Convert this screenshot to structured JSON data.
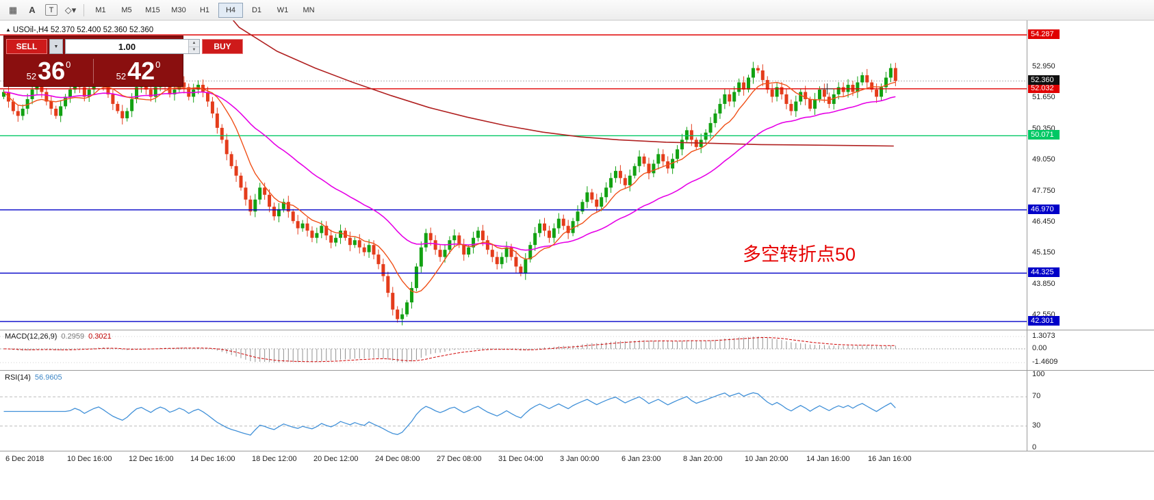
{
  "toolbar": {
    "tools": [
      {
        "name": "crosshair-grid-icon",
        "glyph": "▦"
      },
      {
        "name": "text-label-icon",
        "glyph": "A"
      },
      {
        "name": "text-box-icon",
        "glyph": "T"
      },
      {
        "name": "shapes-icon",
        "glyph": "◇▾"
      }
    ],
    "timeframes": [
      "M1",
      "M5",
      "M15",
      "M30",
      "H1",
      "H4",
      "D1",
      "W1",
      "MN"
    ],
    "active": "H4"
  },
  "header": {
    "marker": "▲",
    "text": "USOil-,H4 52.370 52.400 52.360 52.360"
  },
  "trade_panel": {
    "sell_label": "SELL",
    "buy_label": "BUY",
    "volume": "1.00",
    "sell_price": {
      "small": "52",
      "big": "36",
      "sup": "0"
    },
    "buy_price": {
      "small": "52",
      "big": "42",
      "sup": "0"
    }
  },
  "chart_data": {
    "type": "candlestick",
    "symbol": "USOil-",
    "timeframe": "H4",
    "first_open": 51.7,
    "closes": [
      51.9,
      51.5,
      51.1,
      50.9,
      51.2,
      51.6,
      52.0,
      52.2,
      51.9,
      51.5,
      51.2,
      50.9,
      51.3,
      51.7,
      52.0,
      52.3,
      52.1,
      51.7,
      52.0,
      52.3,
      52.5,
      52.2,
      51.8,
      51.4,
      51.1,
      50.8,
      51.1,
      51.6,
      52.1,
      52.3,
      52.0,
      51.7,
      52.1,
      52.4,
      52.2,
      51.8,
      52.0,
      52.3,
      52.1,
      51.7,
      52.0,
      52.2,
      51.9,
      51.5,
      51.0,
      50.4,
      49.9,
      49.3,
      48.8,
      48.4,
      47.9,
      47.4,
      46.9,
      47.4,
      47.9,
      47.6,
      47.1,
      46.7,
      47.0,
      47.3,
      46.9,
      46.5,
      46.2,
      46.4,
      46.1,
      45.8,
      46.0,
      46.3,
      45.9,
      45.6,
      45.8,
      46.1,
      45.8,
      45.5,
      45.7,
      45.4,
      45.2,
      45.5,
      45.1,
      44.7,
      44.2,
      43.5,
      42.8,
      42.4,
      42.6,
      43.1,
      43.7,
      44.6,
      45.4,
      46.0,
      45.7,
      45.3,
      45.0,
      45.3,
      45.7,
      45.9,
      45.5,
      45.1,
      45.4,
      45.8,
      46.1,
      45.7,
      45.3,
      45.0,
      44.7,
      45.0,
      45.4,
      45.0,
      44.6,
      44.3,
      44.9,
      45.5,
      46.0,
      46.4,
      46.1,
      45.8,
      46.2,
      46.6,
      46.3,
      46.0,
      46.5,
      46.9,
      47.3,
      47.7,
      47.4,
      47.1,
      47.5,
      47.9,
      48.3,
      48.6,
      48.3,
      48.0,
      48.4,
      48.8,
      49.2,
      48.9,
      48.5,
      48.9,
      49.3,
      49.0,
      48.7,
      49.1,
      49.5,
      49.9,
      50.3,
      49.9,
      49.6,
      49.9,
      50.2,
      50.6,
      51.0,
      51.4,
      51.8,
      51.5,
      51.9,
      52.3,
      52.0,
      52.5,
      52.9,
      52.8,
      52.4,
      52.0,
      51.7,
      52.1,
      51.8,
      51.4,
      51.1,
      51.5,
      51.9,
      51.6,
      51.2,
      51.6,
      52.0,
      51.7,
      51.4,
      51.8,
      52.1,
      51.9,
      52.2,
      51.9,
      52.3,
      52.6,
      52.3,
      52.0,
      51.7,
      52.1,
      52.5,
      52.9,
      52.36
    ],
    "up_color": "#12a112",
    "down_color": "#e43c1b",
    "price_ticks": [
      "52.950",
      "51.650",
      "50.350",
      "49.050",
      "47.750",
      "46.450",
      "45.150",
      "43.850",
      "42.550"
    ],
    "hlines": [
      {
        "value": 54.287,
        "label": "54.287",
        "color": "#e00000"
      },
      {
        "value": 52.032,
        "label": "52.032",
        "color": "#e00000"
      },
      {
        "value": 50.071,
        "label": "50.071",
        "color": "#00c864"
      },
      {
        "value": 46.97,
        "label": "46.970",
        "color": "#0000c8"
      },
      {
        "value": 44.325,
        "label": "44.325",
        "color": "#0000c8"
      },
      {
        "value": 42.301,
        "label": "42.301",
        "color": "#0000c8"
      }
    ],
    "current_price": {
      "value": 52.36,
      "label": "52.360",
      "badge_bg": "#101010",
      "line_color": "#b0b0b0"
    },
    "long_ma": {
      "color": "#b02020",
      "points": [
        [
          44,
          56.0
        ],
        [
          50,
          54.6
        ],
        [
          58,
          53.6
        ],
        [
          66,
          52.9
        ],
        [
          74,
          52.3
        ],
        [
          82,
          51.75
        ],
        [
          90,
          51.25
        ],
        [
          98,
          50.85
        ],
        [
          106,
          50.5
        ],
        [
          114,
          50.22
        ],
        [
          122,
          50.02
        ],
        [
          130,
          49.9
        ],
        [
          140,
          49.8
        ],
        [
          150,
          49.75
        ],
        [
          160,
          49.7
        ],
        [
          170,
          49.68
        ],
        [
          180,
          49.66
        ],
        [
          188,
          49.64
        ]
      ]
    },
    "ma_fast": {
      "period": 9,
      "color": "#f05018"
    },
    "ma_slow": {
      "period": 34,
      "color": "#e600e6"
    },
    "macd": {
      "label": "MACD(12,26,9)",
      "value_main": "0.2959",
      "value_signal": "0.3021",
      "ticks": [
        "1.3073",
        "0.00",
        "-1.4609"
      ],
      "max": 1.3073,
      "min": -1.4609,
      "hist_color": "#909090",
      "signal_color": "#d00000"
    },
    "rsi": {
      "label": "RSI(14)",
      "value": "56.9605",
      "period": 14,
      "ticks": [
        "100",
        "70",
        "30",
        "0"
      ],
      "levels": [
        70,
        30
      ],
      "color": "#4090d8"
    },
    "time_labels": [
      "6 Dec 2018",
      "10 Dec 16:00",
      "12 Dec 16:00",
      "14 Dec 16:00",
      "18 Dec 12:00",
      "20 Dec 12:00",
      "24 Dec 08:00",
      "27 Dec 08:00",
      "31 Dec 04:00",
      "3 Jan 00:00",
      "6 Jan 23:00",
      "8 Jan 20:00",
      "10 Jan 20:00",
      "14 Jan 16:00",
      "16 Jan 16:00"
    ],
    "annotation": {
      "text": "多空转折点50",
      "color": "#e60000"
    }
  }
}
